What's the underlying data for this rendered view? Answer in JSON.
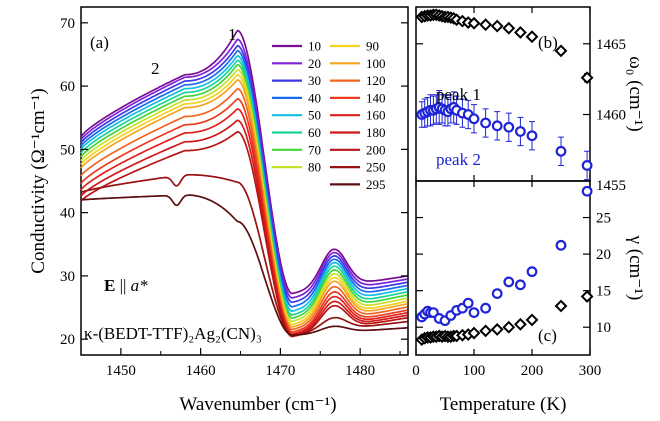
{
  "chart_data": [
    {
      "id": "a",
      "type": "line",
      "panel_label": "(a)",
      "xlabel": "Wavenumber (cm⁻¹)",
      "ylabel": "Conductivity (Ω⁻¹cm⁻¹)",
      "xlim": [
        1445,
        1486
      ],
      "ylim": [
        17.5,
        72.5
      ],
      "xticks": [
        1450,
        1460,
        1470,
        1480
      ],
      "yticks": [
        20,
        30,
        40,
        50,
        60,
        70
      ],
      "annotations": {
        "peak1": "1",
        "peak2": "2",
        "polarization_prefix": "E",
        "polarization_sep": " || ",
        "polarization_axis": "a*",
        "compound": "κ-(BEDT-TTF)₂Ag₂(CN)₃"
      },
      "legend_position": "top-right",
      "legend_values": [
        "10",
        "20",
        "30",
        "40",
        "50",
        "60",
        "70",
        "80",
        "90",
        "100",
        "120",
        "140",
        "160",
        "180",
        "200",
        "250",
        "295"
      ],
      "series": [
        {
          "name": "10",
          "color": "#7a0d94",
          "base": 52.0,
          "peak": 68.8,
          "shoulder": 61.8,
          "dip": 27.2,
          "side": 33.6,
          "end": 30.6
        },
        {
          "name": "20",
          "color": "#7d22d8",
          "base": 51.5,
          "peak": 67.4,
          "shoulder": 61.4,
          "dip": 26.5,
          "side": 33.0,
          "end": 30.1
        },
        {
          "name": "30",
          "color": "#3b38e8",
          "base": 51.0,
          "peak": 66.4,
          "shoulder": 60.8,
          "dip": 25.8,
          "side": 32.4,
          "end": 29.6
        },
        {
          "name": "40",
          "color": "#1a6af0",
          "base": 50.5,
          "peak": 65.6,
          "shoulder": 60.2,
          "dip": 25.1,
          "side": 31.8,
          "end": 29.1
        },
        {
          "name": "50",
          "color": "#12bfe6",
          "base": 50.0,
          "peak": 64.8,
          "shoulder": 59.6,
          "dip": 24.4,
          "side": 31.2,
          "end": 28.6
        },
        {
          "name": "60",
          "color": "#1bd39a",
          "base": 49.4,
          "peak": 64.1,
          "shoulder": 59.0,
          "dip": 23.8,
          "side": 30.6,
          "end": 28.1
        },
        {
          "name": "70",
          "color": "#43d43a",
          "base": 48.8,
          "peak": 63.4,
          "shoulder": 58.4,
          "dip": 23.3,
          "side": 30.0,
          "end": 27.6
        },
        {
          "name": "80",
          "color": "#c8e02a",
          "base": 48.2,
          "peak": 62.6,
          "shoulder": 57.8,
          "dip": 22.8,
          "side": 29.4,
          "end": 27.1
        },
        {
          "name": "90",
          "color": "#f3d21f",
          "base": 47.6,
          "peak": 61.8,
          "shoulder": 57.2,
          "dip": 22.3,
          "side": 28.8,
          "end": 26.6
        },
        {
          "name": "100",
          "color": "#f6a41f",
          "base": 47.0,
          "peak": 61.0,
          "shoulder": 56.6,
          "dip": 21.9,
          "side": 28.2,
          "end": 26.2
        },
        {
          "name": "120",
          "color": "#f1651f",
          "base": 45.8,
          "peak": 59.6,
          "shoulder": 55.2,
          "dip": 21.5,
          "side": 27.4,
          "end": 25.7
        },
        {
          "name": "140",
          "color": "#ea3b1f",
          "base": 44.6,
          "peak": 58.0,
          "shoulder": 53.9,
          "dip": 21.1,
          "side": 26.6,
          "end": 25.2
        },
        {
          "name": "160",
          "color": "#e0201c",
          "base": 43.6,
          "peak": 56.4,
          "shoulder": 52.6,
          "dip": 20.8,
          "side": 25.9,
          "end": 24.8
        },
        {
          "name": "180",
          "color": "#d01818",
          "base": 42.6,
          "peak": 54.6,
          "shoulder": 51.2,
          "dip": 20.6,
          "side": 25.2,
          "end": 24.4
        },
        {
          "name": "200",
          "color": "#b81414",
          "base": 41.8,
          "peak": 52.8,
          "shoulder": 49.8,
          "dip": 20.4,
          "side": 24.6,
          "end": 24.0
        },
        {
          "name": "250",
          "color": "#9a1111",
          "base": 43.2,
          "peak": 44.8,
          "shoulder": 46.0,
          "dip": 20.6,
          "side": 23.0,
          "end": 23.4
        },
        {
          "name": "295",
          "color": "#5c0f10",
          "base": 42.0,
          "peak": 38.6,
          "shoulder": 42.8,
          "dip": 20.6,
          "side": 22.0,
          "end": 22.4
        }
      ]
    },
    {
      "id": "b",
      "type": "scatter",
      "panel_label": "(b)",
      "ylabel": "ω₀ (cm⁻¹)",
      "xlim": [
        0,
        300
      ],
      "ylim": [
        1455.3,
        1467.6
      ],
      "yticks": [
        1455,
        1460,
        1465
      ],
      "series": [
        {
          "name": "peak 1",
          "marker": "diamond",
          "color": "#000000",
          "x": [
            10,
            15,
            20,
            25,
            30,
            35,
            40,
            45,
            50,
            55,
            60,
            65,
            70,
            80,
            90,
            100,
            120,
            140,
            160,
            180,
            200,
            250,
            295
          ],
          "y": [
            1466.9,
            1466.95,
            1467.0,
            1467.0,
            1467.05,
            1467.05,
            1467.0,
            1466.95,
            1466.9,
            1466.9,
            1466.85,
            1466.8,
            1466.7,
            1466.6,
            1466.5,
            1466.45,
            1466.35,
            1466.25,
            1466.1,
            1465.8,
            1465.5,
            1464.5,
            1462.6
          ],
          "err": [
            0.15,
            0.15,
            0.15,
            0.15,
            0.15,
            0.15,
            0.15,
            0.15,
            0.15,
            0.15,
            0.15,
            0.15,
            0.15,
            0.15,
            0.15,
            0.15,
            0.15,
            0.15,
            0.15,
            0.15,
            0.15,
            0.2,
            0.3
          ]
        },
        {
          "name": "peak 2",
          "marker": "circle",
          "color": "#1f24d6",
          "x": [
            10,
            15,
            20,
            25,
            30,
            35,
            40,
            45,
            50,
            55,
            60,
            65,
            70,
            80,
            90,
            100,
            120,
            140,
            160,
            180,
            200,
            250,
            295
          ],
          "y": [
            1460.0,
            1460.1,
            1460.2,
            1460.3,
            1460.3,
            1460.4,
            1460.5,
            1460.4,
            1460.3,
            1460.2,
            1460.4,
            1460.5,
            1460.3,
            1460.1,
            1460.0,
            1459.7,
            1459.4,
            1459.2,
            1459.1,
            1458.8,
            1458.5,
            1457.4,
            1456.4
          ],
          "err": [
            0.9,
            1.0,
            1.0,
            1.1,
            1.0,
            1.0,
            1.2,
            1.0,
            1.1,
            1.0,
            1.0,
            1.1,
            1.0,
            1.0,
            1.0,
            1.0,
            1.0,
            1.0,
            1.0,
            1.0,
            1.0,
            1.0,
            1.0
          ]
        }
      ]
    },
    {
      "id": "c",
      "type": "scatter",
      "panel_label": "(c)",
      "xlabel": "Temperature (K)",
      "ylabel": "γ (cm⁻¹)",
      "xlim": [
        0,
        300
      ],
      "ylim": [
        6.2,
        30
      ],
      "xticks": [
        0,
        100,
        200,
        300
      ],
      "yticks": [
        10,
        15,
        20,
        25
      ],
      "series": [
        {
          "name": "peak 1",
          "marker": "diamond",
          "color": "#000000",
          "x": [
            10,
            15,
            20,
            25,
            30,
            35,
            40,
            45,
            50,
            55,
            60,
            65,
            70,
            80,
            90,
            100,
            120,
            140,
            160,
            180,
            200,
            250,
            295
          ],
          "y": [
            8.3,
            8.5,
            8.6,
            8.6,
            8.7,
            8.7,
            8.8,
            8.7,
            8.8,
            8.7,
            8.7,
            8.8,
            8.8,
            8.9,
            9.0,
            9.2,
            9.5,
            9.7,
            10.0,
            10.4,
            11.0,
            12.9,
            14.2
          ]
        },
        {
          "name": "peak 2",
          "marker": "circle",
          "color": "#1f24d6",
          "x": [
            10,
            15,
            20,
            25,
            30,
            40,
            50,
            60,
            70,
            80,
            90,
            100,
            120,
            140,
            160,
            180,
            200,
            250,
            295
          ],
          "y": [
            11.4,
            11.8,
            12.2,
            12.0,
            12.0,
            11.2,
            10.9,
            11.6,
            12.3,
            12.6,
            13.3,
            12.0,
            12.6,
            14.6,
            16.2,
            15.8,
            17.6,
            21.2,
            28.6
          ]
        }
      ]
    }
  ],
  "panel_b_labels": {
    "peak1": "peak 1",
    "peak2": "peak 2"
  }
}
